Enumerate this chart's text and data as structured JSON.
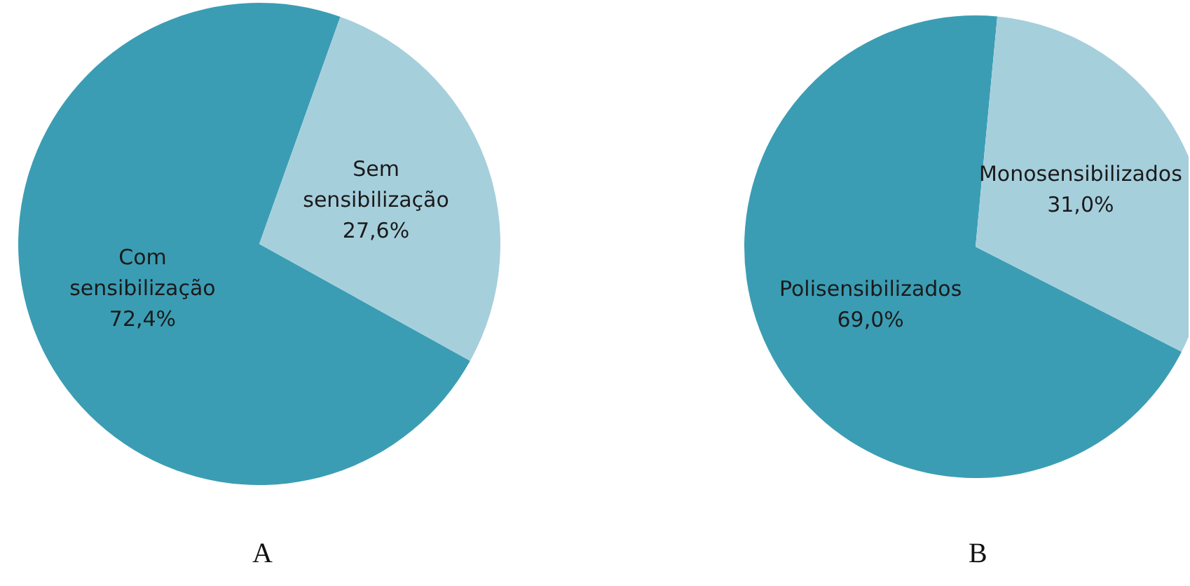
{
  "chart_data": [
    {
      "type": "pie",
      "title": "A",
      "categories": [
        "Com sensibilização",
        "Sem sensibilização"
      ],
      "values": [
        72.4,
        27.6
      ],
      "colors": [
        "#3b9db4",
        "#a6cfdc"
      ],
      "value_labels": [
        "72,4%",
        "27,6%"
      ],
      "legend": false
    },
    {
      "type": "pie",
      "title": "B",
      "categories": [
        "Polisensibilizados",
        "Monosensibilizados"
      ],
      "values": [
        69.0,
        31.0
      ],
      "colors": [
        "#3b9db4",
        "#a6cfdc"
      ],
      "value_labels": [
        "69,0%",
        "31,0%"
      ],
      "legend": false
    }
  ]
}
